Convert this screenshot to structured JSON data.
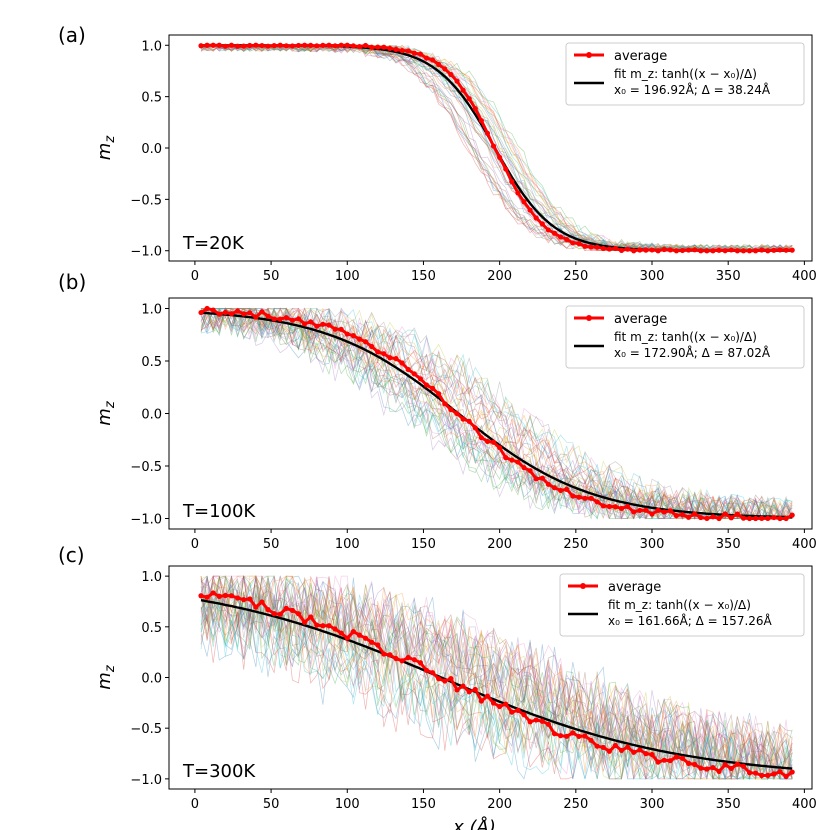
{
  "chart_data": [
    {
      "type": "line",
      "panel_label": "(a)",
      "annotation": "T=20K",
      "ylabel": "m_z",
      "xlim": [
        -17,
        405
      ],
      "ylim": [
        -1.1,
        1.1
      ],
      "x_ticks": [
        0,
        50,
        100,
        150,
        200,
        250,
        300,
        350,
        400
      ],
      "y_ticks": [
        1.0,
        0.5,
        0.0,
        -0.5,
        -1.0
      ],
      "y_tick_labels": [
        "1.0",
        "0.5",
        "0.0",
        "−0.5",
        "−1.0"
      ],
      "legend": {
        "average": "average",
        "fit_line1": "fit m_z: tanh((x − x₀)/Δ)",
        "fit_line2": "x₀ = 196.92Å; Δ = 38.24Å"
      },
      "series": [
        {
          "name": "average",
          "color": "#ff0000",
          "x0": 196.92,
          "delta": 38.24,
          "noise": 0.01
        },
        {
          "name": "fit",
          "color": "#000000",
          "x0": 196.92,
          "delta": 38.24
        }
      ],
      "x_range": [
        4,
        393
      ],
      "sample_noise": 0.06
    },
    {
      "type": "line",
      "panel_label": "(b)",
      "annotation": "T=100K",
      "ylabel": "m_z",
      "xlim": [
        -17,
        405
      ],
      "ylim": [
        -1.1,
        1.1
      ],
      "x_ticks": [
        0,
        50,
        100,
        150,
        200,
        250,
        300,
        350,
        400
      ],
      "y_ticks": [
        1.0,
        0.5,
        0.0,
        -0.5,
        -1.0
      ],
      "y_tick_labels": [
        "1.0",
        "0.5",
        "0.0",
        "−0.5",
        "−1.0"
      ],
      "legend": {
        "average": "average",
        "fit_line1": "fit m_z: tanh((x − x₀)/Δ)",
        "fit_line2": "x₀ = 172.90Å; Δ = 87.02Å"
      },
      "series": [
        {
          "name": "average",
          "color": "#ff0000",
          "x0": 172.9,
          "delta": 87.02,
          "noise": 0.03
        },
        {
          "name": "fit",
          "color": "#000000",
          "x0": 172.9,
          "delta": 87.02
        }
      ],
      "x_range": [
        4,
        393
      ],
      "sample_noise": 0.18
    },
    {
      "type": "line",
      "panel_label": "(c)",
      "annotation": "T=300K",
      "ylabel": "m_z",
      "xlabel": "x (Å)",
      "xlim": [
        -17,
        405
      ],
      "ylim": [
        -1.1,
        1.1
      ],
      "x_ticks": [
        0,
        50,
        100,
        150,
        200,
        250,
        300,
        350,
        400
      ],
      "y_ticks": [
        1.0,
        0.5,
        0.0,
        -0.5,
        -1.0
      ],
      "y_tick_labels": [
        "1.0",
        "0.5",
        "0.0",
        "−0.5",
        "−1.0"
      ],
      "legend": {
        "average": "average",
        "fit_line1": "fit m_z: tanh((x − x₀)/Δ)",
        "fit_line2": "x₀ = 161.66Å; Δ = 157.26Å"
      },
      "series": [
        {
          "name": "average",
          "color": "#ff0000",
          "x0": 161.66,
          "delta": 157.26,
          "noise": 0.05
        },
        {
          "name": "fit",
          "color": "#000000",
          "x0": 161.66,
          "delta": 157.26
        }
      ],
      "x_range": [
        4,
        393
      ],
      "sample_noise": 0.35
    }
  ]
}
